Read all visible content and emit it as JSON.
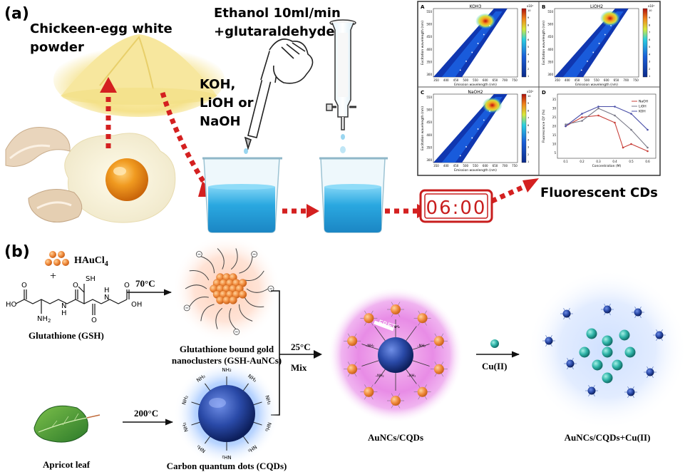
{
  "panel_a": {
    "label": "(a)",
    "powder_label_line1": "Chickeen-egg white",
    "powder_label_line2": "powder",
    "ethanol_line1": "Ethanol 10ml/min",
    "ethanol_line2": "+glutaraldehyde",
    "base_line1": "KOH,",
    "base_line2": "LiOH or",
    "base_line3": "NaOH",
    "timer": "06:00",
    "result_label": "Fluorescent CDs",
    "subplot_A_letter": "A",
    "subplot_A_title": "KOH3",
    "subplot_B_letter": "B",
    "subplot_B_title": "LiOH2",
    "subplot_C_letter": "C",
    "subplot_C_title": "NaOH2",
    "subplot_D_letter": "D",
    "heatmap_ylabel": "Excitation wavelength (nm)",
    "heatmap_xlabel": "Emission wavelength (nm)",
    "heatmap_xticks": [
      "350",
      "400",
      "450",
      "500",
      "550",
      "600",
      "650",
      "700",
      "750"
    ],
    "heatmap_yticks": [
      "300",
      "350",
      "400",
      "450",
      "500",
      "550"
    ],
    "colorbar_ticks": [
      "10",
      "9",
      "8",
      "7",
      "6",
      "5",
      "4",
      "3",
      "2",
      "1"
    ],
    "colorbar_exponent": "x10⁴",
    "lineplot_ylabel": "Fluorescence QY (%)",
    "lineplot_xlabel": "Concentration (M)",
    "lineplot_legend": [
      "NaOH",
      "LiOH",
      "KOH"
    ],
    "lineplot_xticks": [
      "0.1",
      "0.2",
      "0.3",
      "0.4",
      "0.5",
      "0.6"
    ],
    "lineplot_yticks": [
      "5",
      "10",
      "15",
      "20",
      "25",
      "30",
      "35"
    ]
  },
  "panel_b": {
    "label": "(b)",
    "haucl4": "HAuCl",
    "haucl4_sub": "4",
    "plus": "+",
    "gsh_label": "Glutathione (GSH)",
    "temp_70": "70°C",
    "gsh_aunc_line1": "Glutathione bound gold",
    "gsh_aunc_line2": "nanoclusters (GSH-AuNCs)",
    "temp_25": "25°C",
    "mix": "Mix",
    "temp_200": "200°C",
    "apricot_label": "Apricot leaf",
    "cqd_label": "Carbon quantum dots (CQDs)",
    "aunc_cqd_label": "AuNCs/CQDs",
    "fret": "FRET",
    "cu_label": "Cu(II)",
    "final_label": "AuNCs/CQDs+Cu(II)",
    "chem": {
      "ho": "HO",
      "oh": "OH",
      "sh": "SH",
      "nh2": "NH",
      "nh2_sub": "2",
      "h": "H",
      "n": "N",
      "o": "O"
    },
    "cqd_surface": "NH₂",
    "nh2_group": "–NH₂"
  },
  "colors": {
    "arrow_red": "#d42020",
    "dark_red": "#b01515",
    "liquid_blue": "#2aa8e0",
    "timer_red": "#c81e1e",
    "gold": "#f08a3c",
    "cqd_blue": "#2a4aa8",
    "pink_glow": "#e080e0",
    "text": "#111111"
  }
}
